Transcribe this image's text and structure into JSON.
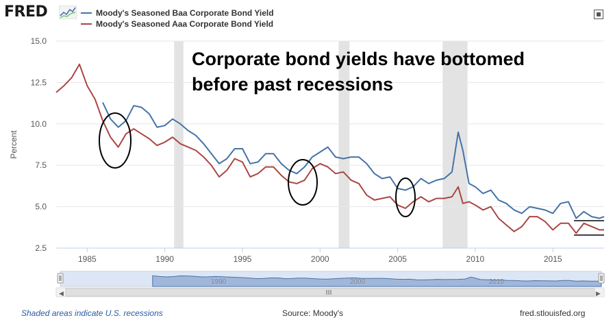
{
  "header": {
    "logo_text": "FRED",
    "fullscreen_icon": "fullscreen-icon"
  },
  "colors": {
    "baa": "#4572a7",
    "aaa": "#aa4643",
    "recession": "#e3e3e3",
    "navigator_fill": "#c7d6ee",
    "navigator_line": "#4572a7"
  },
  "chart_data": {
    "type": "line",
    "title": "Corporate bond yields have bottomed before past recessions",
    "ylabel": "Percent",
    "xlabel": "",
    "ylim": [
      2.5,
      15.0
    ],
    "xlim": [
      1983.0,
      2018.3
    ],
    "y_ticks": [
      "15.0",
      "12.5",
      "10.0",
      "7.5",
      "5.0",
      "2.5"
    ],
    "x_ticks": [
      "1985",
      "1990",
      "1995",
      "2000",
      "2005",
      "2010",
      "2015"
    ],
    "recessions": [
      [
        1990.6,
        1991.2
      ],
      [
        2001.2,
        2001.9
      ],
      [
        2007.9,
        2009.5
      ]
    ],
    "series": [
      {
        "name": "Moody's Seasoned Baa Corporate Bond Yield",
        "x": [
          1986.0,
          1986.5,
          1987.0,
          1987.5,
          1988.0,
          1988.5,
          1989.0,
          1989.5,
          1990.0,
          1990.5,
          1991.0,
          1991.5,
          1992.0,
          1992.5,
          1993.0,
          1993.5,
          1994.0,
          1994.5,
          1995.0,
          1995.5,
          1996.0,
          1996.5,
          1997.0,
          1997.5,
          1998.0,
          1998.5,
          1999.0,
          1999.5,
          2000.0,
          2000.5,
          2001.0,
          2001.5,
          2002.0,
          2002.5,
          2003.0,
          2003.5,
          2004.0,
          2004.5,
          2005.0,
          2005.5,
          2006.0,
          2006.5,
          2007.0,
          2007.5,
          2008.0,
          2008.5,
          2008.9,
          2009.2,
          2009.6,
          2010.0,
          2010.5,
          2011.0,
          2011.5,
          2012.0,
          2012.5,
          2013.0,
          2013.5,
          2014.0,
          2014.5,
          2015.0,
          2015.5,
          2016.0,
          2016.5,
          2017.0,
          2017.5,
          2018.0,
          2018.3
        ],
        "values": [
          11.3,
          10.3,
          9.8,
          10.2,
          11.1,
          11.0,
          10.6,
          9.8,
          9.9,
          10.3,
          10.0,
          9.6,
          9.3,
          8.8,
          8.2,
          7.6,
          7.9,
          8.5,
          8.5,
          7.6,
          7.7,
          8.2,
          8.2,
          7.6,
          7.2,
          7.0,
          7.4,
          8.0,
          8.3,
          8.6,
          8.0,
          7.9,
          8.0,
          8.0,
          7.6,
          7.0,
          6.7,
          6.8,
          6.1,
          6.0,
          6.2,
          6.7,
          6.4,
          6.6,
          6.7,
          7.1,
          9.5,
          8.4,
          6.4,
          6.2,
          5.8,
          6.0,
          5.4,
          5.2,
          4.8,
          4.6,
          5.0,
          4.9,
          4.8,
          4.6,
          5.2,
          5.3,
          4.3,
          4.7,
          4.4,
          4.3,
          4.4
        ]
      },
      {
        "name": "Moody's Seasoned Aaa Corporate Bond Yield",
        "x": [
          1983.0,
          1983.5,
          1984.0,
          1984.5,
          1985.0,
          1985.5,
          1986.0,
          1986.5,
          1987.0,
          1987.5,
          1988.0,
          1988.5,
          1989.0,
          1989.5,
          1990.0,
          1990.5,
          1991.0,
          1991.5,
          1992.0,
          1992.5,
          1993.0,
          1993.5,
          1994.0,
          1994.5,
          1995.0,
          1995.5,
          1996.0,
          1996.5,
          1997.0,
          1997.5,
          1998.0,
          1998.5,
          1999.0,
          1999.5,
          2000.0,
          2000.5,
          2001.0,
          2001.5,
          2002.0,
          2002.5,
          2003.0,
          2003.5,
          2004.0,
          2004.5,
          2005.0,
          2005.5,
          2006.0,
          2006.5,
          2007.0,
          2007.5,
          2008.0,
          2008.5,
          2008.9,
          2009.2,
          2009.6,
          2010.0,
          2010.5,
          2011.0,
          2011.5,
          2012.0,
          2012.5,
          2013.0,
          2013.5,
          2014.0,
          2014.5,
          2015.0,
          2015.5,
          2016.0,
          2016.5,
          2017.0,
          2017.5,
          2018.0,
          2018.3
        ],
        "values": [
          11.9,
          12.3,
          12.8,
          13.6,
          12.3,
          11.5,
          10.2,
          9.2,
          8.6,
          9.4,
          9.7,
          9.4,
          9.1,
          8.7,
          8.9,
          9.2,
          8.8,
          8.6,
          8.4,
          8.0,
          7.5,
          6.8,
          7.2,
          7.9,
          7.7,
          6.8,
          7.0,
          7.4,
          7.4,
          6.9,
          6.5,
          6.4,
          6.6,
          7.3,
          7.6,
          7.4,
          7.0,
          7.1,
          6.6,
          6.4,
          5.7,
          5.4,
          5.5,
          5.6,
          5.1,
          4.9,
          5.3,
          5.6,
          5.3,
          5.5,
          5.5,
          5.6,
          6.2,
          5.2,
          5.3,
          5.1,
          4.8,
          5.0,
          4.3,
          3.9,
          3.5,
          3.8,
          4.4,
          4.4,
          4.1,
          3.6,
          4.0,
          4.0,
          3.4,
          4.0,
          3.8,
          3.6,
          3.6
        ]
      }
    ],
    "annotation": "Corporate bond yields have bottomed before past recessions",
    "navigator_labels": [
      "1990",
      "2000",
      "2010"
    ]
  },
  "footer": {
    "recession_note": "Shaded areas indicate U.S. recessions",
    "source": "Source: Moody's",
    "site": "fred.stlouisfed.org"
  }
}
